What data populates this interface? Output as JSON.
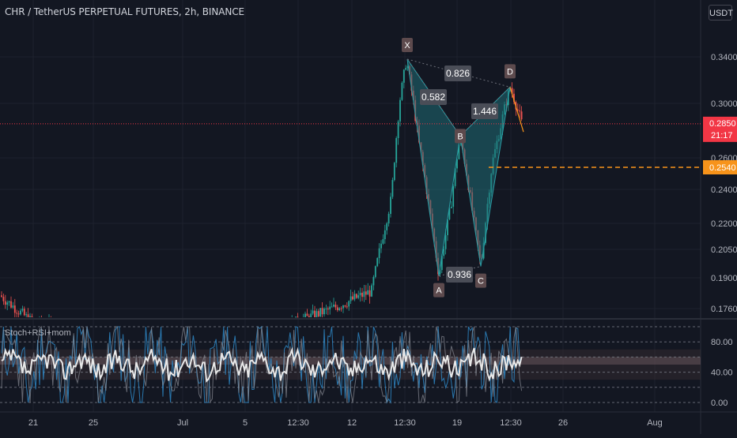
{
  "header": {
    "symbol_title": "CHR / TetherUS PERPETUAL FUTURES, 2h, BINANCE",
    "currency_button": "USDT"
  },
  "indicator": {
    "title": "Stoch+RSI+mom"
  },
  "colors": {
    "background": "#131722",
    "grid": "#1e222d",
    "up": "#26a69a",
    "down": "#ef5350",
    "pattern_fill": "#1f6b74",
    "pattern_line": "#2aa0a8",
    "last_price": "#f23645",
    "alert_line": "#f7931a",
    "stoch_white": "#e8e8e8",
    "stoch_blue": "#2e88c7"
  },
  "price_scale": {
    "ticks": [
      "0.3400",
      "0.3000",
      "0.2600",
      "0.2400",
      "0.2200",
      "0.2050",
      "0.1900",
      "0.1760"
    ],
    "last_price": "0.2850",
    "countdown": "21:17",
    "alert_price": "0.2540"
  },
  "indicator_scale": {
    "ticks": [
      "80.00",
      "40.00",
      "0.00"
    ]
  },
  "time_axis": {
    "ticks": [
      "21",
      "25",
      "Jul",
      "5",
      "12:30",
      "12",
      "12:30",
      "19",
      "12:30",
      "26",
      "Aug"
    ]
  },
  "chart_data": {
    "type": "candlestick",
    "title": "CHR / TetherUS PERPETUAL FUTURES, 2h, BINANCE",
    "ylabel": "USDT",
    "ylim": [
      0.168,
      0.362
    ],
    "log_scale": true,
    "grid": true,
    "last_price": 0.285,
    "alert_level": 0.254,
    "harmonic_pattern": {
      "points": [
        {
          "label": "X",
          "price": 0.338
        },
        {
          "label": "A",
          "price": 0.191
        },
        {
          "label": "B",
          "price": 0.276
        },
        {
          "label": "C",
          "price": 0.196
        },
        {
          "label": "D",
          "price": 0.314
        }
      ],
      "ratios": [
        "0.826",
        "0.582",
        "1.446",
        "0.936"
      ]
    },
    "indicator": {
      "name": "Stoch+RSI+mom",
      "ylim": [
        0,
        100
      ],
      "levels": [
        0,
        20,
        40,
        60,
        80,
        100
      ]
    }
  }
}
